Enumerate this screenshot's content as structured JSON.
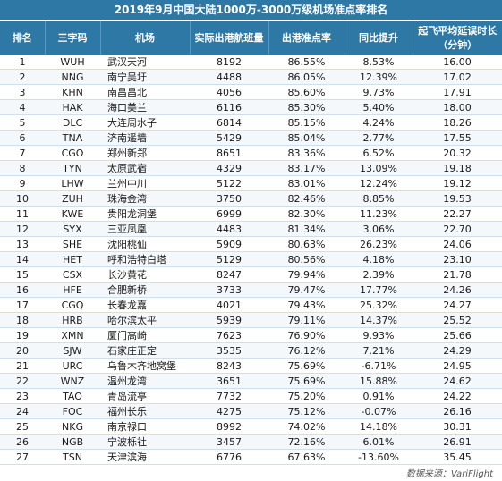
{
  "title": "2019年9月中国大陆1000万-3000万级机场准点率排名",
  "headers": {
    "rank": "排名",
    "code": "三字码",
    "airport": "机场",
    "flights": "实际出港航班量",
    "ontime": "出港准点率",
    "yoy": "同比提升",
    "delay_line1": "起飞平均延误时长",
    "delay_line2": "（分钟）"
  },
  "rows": [
    {
      "rank": "1",
      "code": "WUH",
      "airport": "武汉天河",
      "flights": "8192",
      "ontime": "86.55%",
      "yoy": "8.53%",
      "delay": "16.00"
    },
    {
      "rank": "2",
      "code": "NNG",
      "airport": "南宁吴圩",
      "flights": "4488",
      "ontime": "86.05%",
      "yoy": "12.39%",
      "delay": "17.02"
    },
    {
      "rank": "3",
      "code": "KHN",
      "airport": "南昌昌北",
      "flights": "4056",
      "ontime": "85.60%",
      "yoy": "9.73%",
      "delay": "17.91"
    },
    {
      "rank": "4",
      "code": "HAK",
      "airport": "海口美兰",
      "flights": "6116",
      "ontime": "85.30%",
      "yoy": "5.40%",
      "delay": "18.00"
    },
    {
      "rank": "5",
      "code": "DLC",
      "airport": "大连周水子",
      "flights": "6814",
      "ontime": "85.15%",
      "yoy": "4.24%",
      "delay": "18.26"
    },
    {
      "rank": "6",
      "code": "TNA",
      "airport": "济南遥墙",
      "flights": "5429",
      "ontime": "85.04%",
      "yoy": "2.77%",
      "delay": "17.55"
    },
    {
      "rank": "7",
      "code": "CGO",
      "airport": "郑州新郑",
      "flights": "8651",
      "ontime": "83.36%",
      "yoy": "6.52%",
      "delay": "20.32"
    },
    {
      "rank": "8",
      "code": "TYN",
      "airport": "太原武宿",
      "flights": "4329",
      "ontime": "83.17%",
      "yoy": "13.09%",
      "delay": "19.18"
    },
    {
      "rank": "9",
      "code": "LHW",
      "airport": "兰州中川",
      "flights": "5122",
      "ontime": "83.01%",
      "yoy": "12.24%",
      "delay": "19.12"
    },
    {
      "rank": "10",
      "code": "ZUH",
      "airport": "珠海金湾",
      "flights": "3750",
      "ontime": "82.46%",
      "yoy": "8.85%",
      "delay": "19.53"
    },
    {
      "rank": "11",
      "code": "KWE",
      "airport": "贵阳龙洞堡",
      "flights": "6999",
      "ontime": "82.30%",
      "yoy": "11.23%",
      "delay": "22.27"
    },
    {
      "rank": "12",
      "code": "SYX",
      "airport": "三亚凤凰",
      "flights": "4483",
      "ontime": "81.34%",
      "yoy": "3.06%",
      "delay": "22.70"
    },
    {
      "rank": "13",
      "code": "SHE",
      "airport": "沈阳桃仙",
      "flights": "5909",
      "ontime": "80.63%",
      "yoy": "26.23%",
      "delay": "24.06"
    },
    {
      "rank": "14",
      "code": "HET",
      "airport": "呼和浩特白塔",
      "flights": "5129",
      "ontime": "80.56%",
      "yoy": "4.18%",
      "delay": "23.10"
    },
    {
      "rank": "15",
      "code": "CSX",
      "airport": "长沙黄花",
      "flights": "8247",
      "ontime": "79.94%",
      "yoy": "2.39%",
      "delay": "21.78"
    },
    {
      "rank": "16",
      "code": "HFE",
      "airport": "合肥新桥",
      "flights": "3733",
      "ontime": "79.47%",
      "yoy": "17.77%",
      "delay": "24.26"
    },
    {
      "rank": "17",
      "code": "CGQ",
      "airport": "长春龙嘉",
      "flights": "4021",
      "ontime": "79.43%",
      "yoy": "25.32%",
      "delay": "24.27"
    },
    {
      "rank": "18",
      "code": "HRB",
      "airport": "哈尔滨太平",
      "flights": "5939",
      "ontime": "79.11%",
      "yoy": "14.37%",
      "delay": "25.52"
    },
    {
      "rank": "19",
      "code": "XMN",
      "airport": "厦门高崎",
      "flights": "7623",
      "ontime": "76.90%",
      "yoy": "9.93%",
      "delay": "25.66"
    },
    {
      "rank": "20",
      "code": "SJW",
      "airport": "石家庄正定",
      "flights": "3535",
      "ontime": "76.12%",
      "yoy": "7.21%",
      "delay": "24.29"
    },
    {
      "rank": "21",
      "code": "URC",
      "airport": "乌鲁木齐地窝堡",
      "flights": "8243",
      "ontime": "75.69%",
      "yoy": "-6.71%",
      "delay": "24.95"
    },
    {
      "rank": "22",
      "code": "WNZ",
      "airport": "温州龙湾",
      "flights": "3651",
      "ontime": "75.69%",
      "yoy": "15.88%",
      "delay": "24.62"
    },
    {
      "rank": "23",
      "code": "TAO",
      "airport": "青岛流亭",
      "flights": "7732",
      "ontime": "75.20%",
      "yoy": "0.91%",
      "delay": "24.22"
    },
    {
      "rank": "24",
      "code": "FOC",
      "airport": "福州长乐",
      "flights": "4275",
      "ontime": "75.12%",
      "yoy": "-0.07%",
      "delay": "26.16"
    },
    {
      "rank": "25",
      "code": "NKG",
      "airport": "南京禄口",
      "flights": "8992",
      "ontime": "74.02%",
      "yoy": "14.18%",
      "delay": "30.31"
    },
    {
      "rank": "26",
      "code": "NGB",
      "airport": "宁波栎社",
      "flights": "3457",
      "ontime": "72.16%",
      "yoy": "6.01%",
      "delay": "26.91"
    },
    {
      "rank": "27",
      "code": "TSN",
      "airport": "天津滨海",
      "flights": "6776",
      "ontime": "67.63%",
      "yoy": "-13.60%",
      "delay": "35.45"
    }
  ],
  "source": "数据来源：VariFlight",
  "colors": {
    "header_bg": "#2e78a6",
    "header_text": "#ffffff"
  }
}
